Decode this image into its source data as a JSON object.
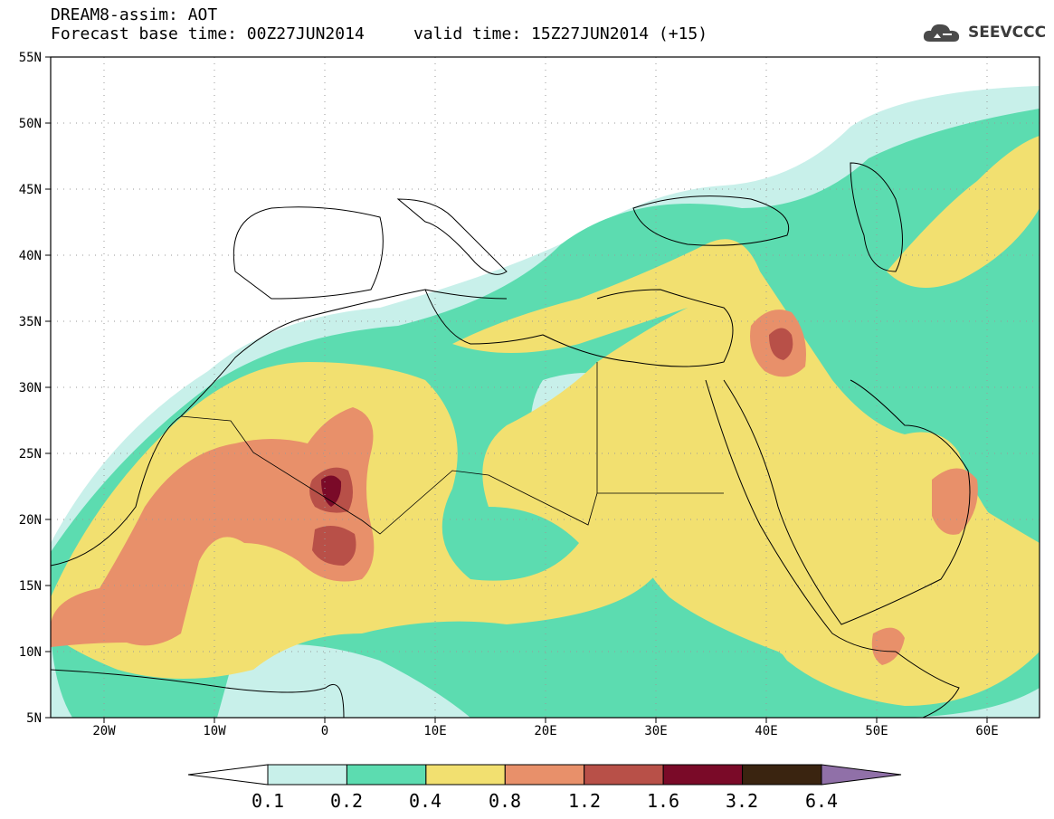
{
  "header": {
    "title": "DREAM8-assim: AOT",
    "base_time": "Forecast base time: 00Z27JUN2014",
    "valid_time": "valid time: 15Z27JUN2014 (+15)"
  },
  "logo": {
    "text": "SEEVCCC",
    "icon": "cloud-icon"
  },
  "map": {
    "lat_labels": [
      "55N",
      "50N",
      "45N",
      "40N",
      "35N",
      "30N",
      "25N",
      "20N",
      "15N",
      "10N",
      "5N"
    ],
    "lon_labels": [
      "20W",
      "10W",
      "0",
      "10E",
      "20E",
      "30E",
      "40E",
      "50E",
      "60E"
    ]
  },
  "colorbar": {
    "labels": [
      "0.1",
      "0.2",
      "0.4",
      "0.8",
      "1.2",
      "1.6",
      "3.2",
      "6.4"
    ],
    "colors": [
      "#c8f0ea",
      "#5cdcb0",
      "#f2e070",
      "#e8906a",
      "#b85048",
      "#7a0a28",
      "#3a2410",
      "#9070a8"
    ]
  }
}
